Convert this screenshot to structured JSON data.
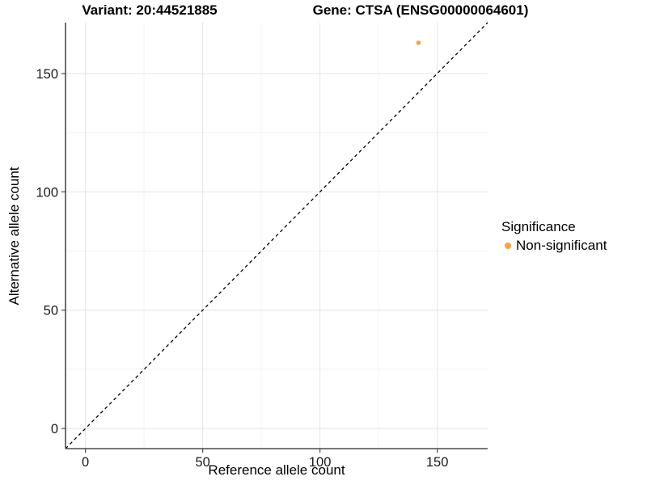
{
  "titles": {
    "variant": "Variant: 20:44521885",
    "gene": "Gene: CTSA (ENSG00000064601)"
  },
  "chart_data": {
    "type": "scatter",
    "title": "Variant: 20:44521885 / Gene: CTSA (ENSG00000064601)",
    "xlabel": "Reference allele count",
    "ylabel": "Alternative allele count",
    "xlim": [
      -8.5,
      171.5
    ],
    "ylim": [
      -8.5,
      171.5
    ],
    "x_ticks": [
      0,
      50,
      100,
      150
    ],
    "y_ticks": [
      0,
      50,
      100,
      150
    ],
    "x_minor_ticks": [
      25,
      75,
      125
    ],
    "y_minor_ticks": [
      25,
      75,
      125
    ],
    "grid": "on",
    "identity_line": {
      "equation": "y = x",
      "style": "dashed",
      "color": "#000000"
    },
    "series": [
      {
        "name": "Non-significant",
        "color": "#F9A242",
        "marker": "circle",
        "points": [
          {
            "x": 142,
            "y": 163
          }
        ]
      }
    ],
    "legend": {
      "title": "Significance",
      "position": "right",
      "items": [
        {
          "label": "Non-significant",
          "color": "#F9A242"
        }
      ]
    }
  },
  "style": {
    "axis_color": "#4a4a4a",
    "tick_text_color": "#1a1a1a",
    "grid_major": "#e4e4e4",
    "grid_minor": "#f3f3f3"
  }
}
